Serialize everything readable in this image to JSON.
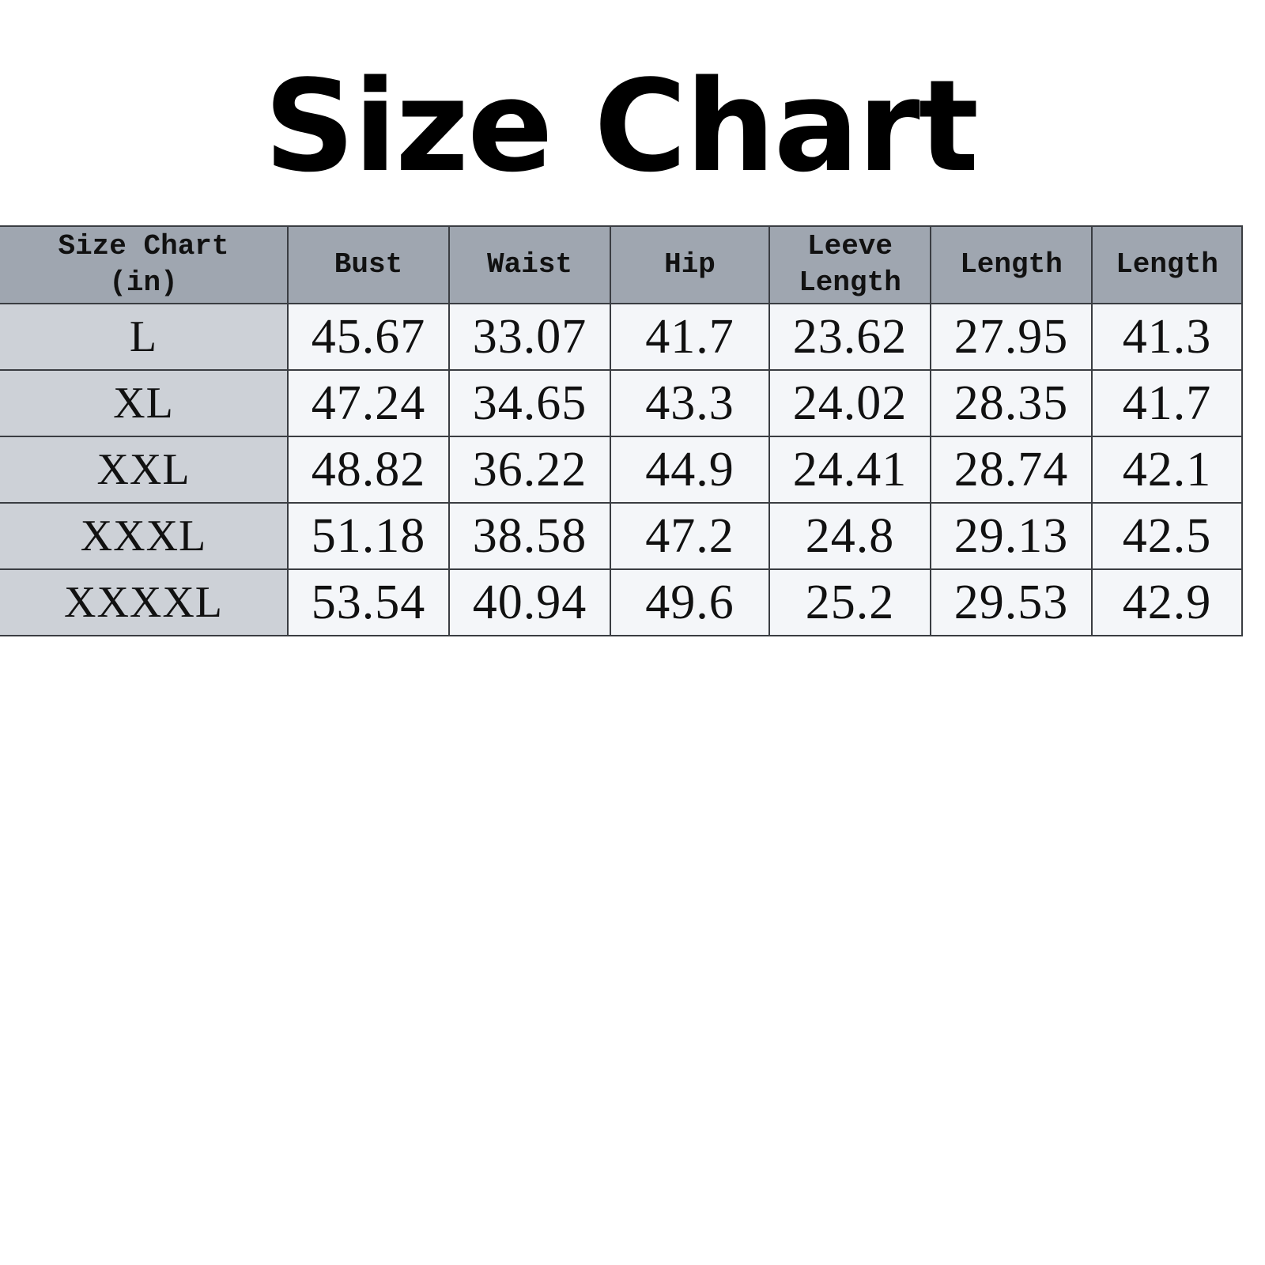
{
  "title": "Size Chart",
  "table": {
    "headers": [
      "Size Chart\n(in)",
      "Bust",
      "Waist",
      "Hip",
      "Leeve\nLength",
      "Length",
      "Length"
    ],
    "rows": [
      {
        "size": "L",
        "values": [
          "45.67",
          "33.07",
          "41.7",
          "23.62",
          "27.95",
          "41.3"
        ]
      },
      {
        "size": "XL",
        "values": [
          "47.24",
          "34.65",
          "43.3",
          "24.02",
          "28.35",
          "41.7"
        ]
      },
      {
        "size": "XXL",
        "values": [
          "48.82",
          "36.22",
          "44.9",
          "24.41",
          "28.74",
          "42.1"
        ]
      },
      {
        "size": "XXXL",
        "values": [
          "51.18",
          "38.58",
          "47.2",
          "24.8",
          "29.13",
          "42.5"
        ]
      },
      {
        "size": "XXXXL",
        "values": [
          "53.54",
          "40.94",
          "49.6",
          "25.2",
          "29.53",
          "42.9"
        ]
      }
    ]
  },
  "colors": {
    "header_bg": "#9fa6b0",
    "size_col_bg": "#cdd1d7",
    "cell_bg": "#f4f6f9",
    "border": "#3a3d42"
  }
}
